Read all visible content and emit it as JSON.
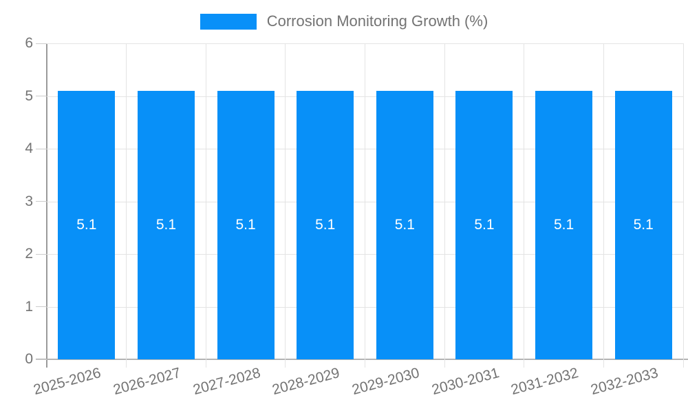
{
  "chart_data": {
    "type": "bar",
    "title": "Corrosion Monitoring Growth (%)",
    "categories": [
      "2025-2026",
      "2026-2027",
      "2027-2028",
      "2028-2029",
      "2029-2030",
      "2030-2031",
      "2031-2032",
      "2032-2033"
    ],
    "series": [
      {
        "name": "Corrosion Monitoring Growth (%)",
        "values": [
          5.1,
          5.1,
          5.1,
          5.1,
          5.1,
          5.1,
          5.1,
          5.1
        ]
      }
    ],
    "bar_labels": [
      "5.1",
      "5.1",
      "5.1",
      "5.1",
      "5.1",
      "5.1",
      "5.1",
      "5.1"
    ],
    "xlabel": "",
    "ylabel": "",
    "ylim": [
      0,
      6
    ],
    "yticks": [
      0,
      1,
      2,
      3,
      4,
      5,
      6
    ],
    "grid": true,
    "legend_position": "top-center",
    "colors": {
      "bar": "#0890f8",
      "grid": "#e3e3e3",
      "axis_line": "#9a9a9a",
      "baseline": "#b3b3b3",
      "tick": "#cccccc",
      "text": "#737373",
      "bar_label": "#ffffff"
    }
  }
}
